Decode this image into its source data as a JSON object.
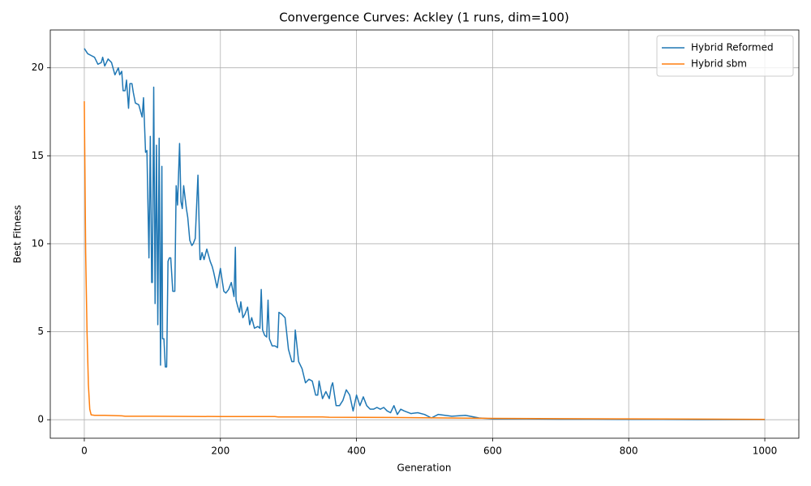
{
  "chart_data": {
    "type": "line",
    "title": "Convergence Curves: Ackley (1 runs, dim=100)",
    "x_label": "Generation",
    "y_label": "Best Fitness",
    "xlim": [
      -50,
      1050
    ],
    "ylim": [
      -1.05,
      22.15
    ],
    "xticks": [
      0,
      200,
      400,
      600,
      800,
      1000
    ],
    "yticks": [
      0,
      5,
      10,
      15,
      20
    ],
    "grid": true,
    "legend": "upper right",
    "series": [
      {
        "name": "Hybrid Reformed",
        "color": "#1f77b4",
        "x": [
          0,
          5,
          10,
          15,
          20,
          25,
          27,
          30,
          35,
          40,
          45,
          50,
          52,
          55,
          57,
          60,
          62,
          65,
          67,
          70,
          72,
          75,
          80,
          85,
          87,
          90,
          92,
          95,
          97,
          99,
          100,
          102,
          104,
          106,
          108,
          110,
          112,
          114,
          115,
          117,
          119,
          121,
          123,
          125,
          127,
          130,
          133,
          135,
          137,
          140,
          142,
          144,
          146,
          150,
          152,
          155,
          158,
          160,
          163,
          167,
          170,
          171,
          173,
          176,
          180,
          185,
          188,
          190,
          195,
          200,
          205,
          208,
          212,
          216,
          220,
          222,
          223,
          225,
          228,
          230,
          233,
          236,
          240,
          243,
          246,
          250,
          255,
          258,
          260,
          262,
          265,
          268,
          270,
          272,
          276,
          280,
          284,
          286,
          290,
          295,
          300,
          305,
          308,
          310,
          315,
          320,
          325,
          330,
          335,
          340,
          343,
          345,
          350,
          355,
          360,
          363,
          365,
          370,
          375,
          380,
          385,
          390,
          395,
          400,
          405,
          410,
          415,
          420,
          425,
          430,
          435,
          440,
          445,
          450,
          455,
          460,
          465,
          470,
          480,
          490,
          500,
          510,
          520,
          540,
          560,
          580,
          600,
          650,
          700,
          750,
          800,
          850,
          900,
          950,
          1000
        ],
        "values": [
          21.1,
          20.8,
          20.7,
          20.6,
          20.2,
          20.3,
          20.6,
          20.1,
          20.5,
          20.3,
          19.6,
          20.0,
          19.6,
          19.8,
          18.7,
          18.7,
          19.3,
          17.7,
          19.1,
          19.1,
          18.6,
          18.0,
          17.9,
          17.2,
          18.3,
          15.2,
          15.3,
          9.2,
          16.1,
          7.8,
          7.8,
          18.9,
          6.6,
          15.6,
          5.4,
          16.0,
          3.1,
          14.4,
          4.6,
          4.6,
          3.0,
          3.0,
          9.0,
          9.2,
          9.2,
          7.3,
          7.3,
          13.3,
          12.2,
          15.7,
          12.4,
          12.0,
          13.3,
          12.0,
          11.5,
          10.2,
          9.9,
          10.0,
          10.3,
          13.9,
          9.1,
          9.1,
          9.5,
          9.1,
          9.7,
          9.0,
          8.7,
          8.4,
          7.5,
          8.6,
          7.3,
          7.2,
          7.4,
          7.8,
          7.0,
          9.8,
          6.8,
          6.5,
          6.1,
          6.7,
          5.8,
          6.0,
          6.4,
          5.4,
          5.8,
          5.2,
          5.3,
          5.2,
          7.4,
          5.1,
          4.8,
          4.7,
          6.8,
          4.6,
          4.2,
          4.2,
          4.1,
          6.1,
          6.0,
          5.8,
          4.0,
          3.3,
          3.3,
          5.1,
          3.3,
          2.9,
          2.1,
          2.3,
          2.2,
          1.4,
          1.4,
          2.2,
          1.2,
          1.6,
          1.2,
          1.9,
          2.1,
          0.8,
          0.8,
          1.1,
          1.7,
          1.4,
          0.5,
          1.4,
          0.8,
          1.3,
          0.8,
          0.6,
          0.6,
          0.7,
          0.6,
          0.7,
          0.5,
          0.4,
          0.8,
          0.3,
          0.6,
          0.5,
          0.35,
          0.4,
          0.3,
          0.1,
          0.3,
          0.2,
          0.25,
          0.1,
          0.05,
          0.05,
          0.03,
          0.03,
          0.02,
          0.02,
          0.01,
          0.01,
          0.01
        ]
      },
      {
        "name": "Hybrid sbm",
        "color": "#ff7f0e",
        "x": [
          0,
          2,
          4,
          6,
          8,
          10,
          15,
          30,
          55,
          60,
          100,
          200,
          280,
          285,
          350,
          360,
          450,
          500,
          600,
          700,
          800,
          900,
          1000
        ],
        "values": [
          18.1,
          9.5,
          5.0,
          2.0,
          0.6,
          0.28,
          0.25,
          0.25,
          0.22,
          0.2,
          0.2,
          0.18,
          0.18,
          0.16,
          0.16,
          0.14,
          0.13,
          0.11,
          0.08,
          0.06,
          0.05,
          0.04,
          0.02
        ]
      }
    ]
  }
}
